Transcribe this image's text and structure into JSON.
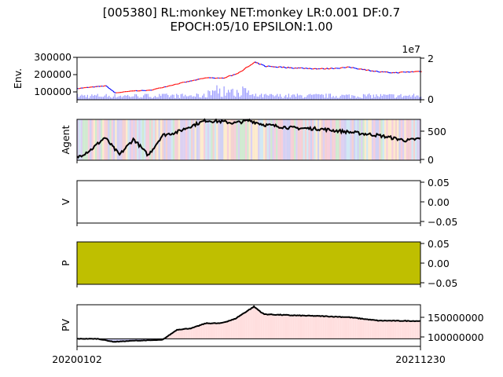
{
  "title_line1": "[005380] RL:monkey NET:monkey LR:0.001 DF:0.7",
  "title_line2": "EPOCH:05/10 EPSILON:1.00",
  "x_start_label": "20200102",
  "x_end_label": "20211230",
  "colors": {
    "price_up": "#ff0000",
    "price_down": "#0000ff",
    "volume": "#9a9aff",
    "agent_line": "#000000",
    "p_fill": "#bfbf00",
    "pv_above": "#ffdede",
    "pv_below": "#c8c8f0"
  },
  "chart_data": [
    {
      "type": "line",
      "panel": "env",
      "ylabel": "Env.",
      "yticks": [
        "300000",
        "200000",
        "100000"
      ],
      "ylim": [
        50000,
        300000
      ],
      "y2ticks": [
        "2",
        "0"
      ],
      "y2_scale_label": "1e7",
      "series": [
        {
          "values_note": "",
          "x": [
            "20200102",
            "20200301",
            "20200320",
            "20200501",
            "20200601",
            "20200801",
            "20201001",
            "20201101",
            "20201201",
            "20210111",
            "20210201",
            "20210401",
            "20210601",
            "20210801",
            "20211001",
            "20211101",
            "20211230"
          ],
          "values": [
            117000,
            132000,
            90000,
            103000,
            105000,
            145000,
            180000,
            176000,
            200000,
            270000,
            248000,
            238000,
            232000,
            241000,
            214000,
            209000,
            218000
          ]
        }
      ]
    },
    {
      "type": "line",
      "panel": "agent",
      "ylabel": "Agent",
      "yticks": [
        "500",
        "0"
      ],
      "ylim": [
        -50,
        720
      ],
      "series": [
        {
          "x": [
            "20200102",
            "20200201",
            "20200301",
            "20200401",
            "20200501",
            "20200601",
            "20200701",
            "20200801",
            "20200901",
            "20201001",
            "20201101",
            "20201201",
            "20210101",
            "20210201",
            "20210401",
            "20210601",
            "20210801",
            "20211001",
            "20211201",
            "20211230"
          ],
          "values": [
            0,
            150,
            380,
            50,
            350,
            40,
            420,
            480,
            600,
            700,
            680,
            650,
            700,
            620,
            560,
            540,
            480,
            420,
            320,
            360
          ]
        }
      ]
    },
    {
      "type": "line",
      "panel": "V",
      "ylabel": "V",
      "yticks": [
        "0.05",
        "0.00",
        "−0.05"
      ],
      "ylim": [
        -0.05,
        0.05
      ],
      "series": []
    },
    {
      "type": "area",
      "panel": "P",
      "ylabel": "P",
      "yticks": [
        "0.05",
        "0.00",
        "−0.05"
      ],
      "ylim": [
        -0.05,
        0.05
      ],
      "series": []
    },
    {
      "type": "area",
      "panel": "PV",
      "ylabel": "PV",
      "yticks": [
        "150000000",
        "100000000"
      ],
      "ylim": [
        80000000,
        190000000
      ],
      "baseline": 100000000,
      "series": [
        {
          "x": [
            "20200102",
            "20200215",
            "20200320",
            "20200501",
            "20200701",
            "20200801",
            "20200901",
            "20201001",
            "20201101",
            "20201201",
            "20210111",
            "20210201",
            "20210401",
            "20210601",
            "20210801",
            "20211001",
            "20211230"
          ],
          "values": [
            100000000,
            100000000,
            92000000,
            95000000,
            97000000,
            124000000,
            128000000,
            141000000,
            141000000,
            152000000,
            185000000,
            165000000,
            162000000,
            160000000,
            157000000,
            148000000,
            147000000
          ]
        }
      ]
    }
  ]
}
